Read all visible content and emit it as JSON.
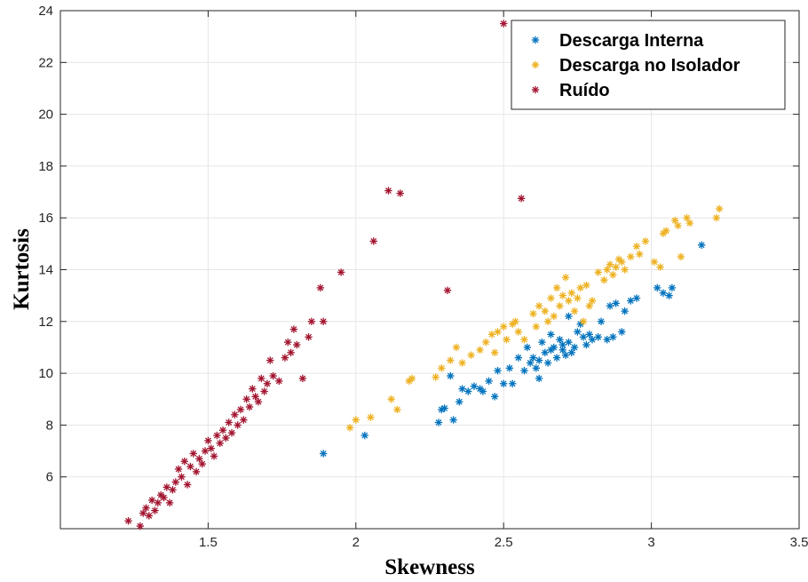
{
  "chart_data": {
    "type": "scatter",
    "title": "",
    "xlabel": "Skewness",
    "ylabel": "Kurtosis",
    "xlim": [
      1.0,
      3.5
    ],
    "ylim": [
      4.0,
      24.0
    ],
    "xticks": [
      1.5,
      2,
      2.5,
      3,
      3.5
    ],
    "xtick_labels": [
      "1.5",
      "2",
      "2.5",
      "3",
      "3.5"
    ],
    "yticks": [
      6,
      8,
      10,
      12,
      14,
      16,
      18,
      20,
      22,
      24
    ],
    "ytick_labels": [
      "6",
      "8",
      "10",
      "12",
      "14",
      "16",
      "18",
      "20",
      "22",
      "24"
    ],
    "grid": true,
    "legend_position": "top-right",
    "marker": "asterisk",
    "series": [
      {
        "name": "Descarga Interna",
        "color": "#0072BD",
        "points": [
          [
            1.89,
            6.9
          ],
          [
            2.03,
            7.6
          ],
          [
            2.28,
            8.1
          ],
          [
            2.3,
            8.65
          ],
          [
            2.29,
            8.6
          ],
          [
            2.33,
            8.2
          ],
          [
            2.35,
            8.9
          ],
          [
            2.32,
            9.9
          ],
          [
            2.36,
            9.4
          ],
          [
            2.38,
            9.3
          ],
          [
            2.4,
            9.5
          ],
          [
            2.42,
            9.4
          ],
          [
            2.43,
            9.3
          ],
          [
            2.45,
            9.7
          ],
          [
            2.47,
            9.1
          ],
          [
            2.48,
            10.1
          ],
          [
            2.5,
            9.6
          ],
          [
            2.52,
            10.2
          ],
          [
            2.53,
            9.6
          ],
          [
            2.55,
            10.6
          ],
          [
            2.57,
            10.1
          ],
          [
            2.58,
            11.0
          ],
          [
            2.59,
            10.4
          ],
          [
            2.6,
            10.6
          ],
          [
            2.61,
            10.2
          ],
          [
            2.62,
            10.5
          ],
          [
            2.62,
            9.8
          ],
          [
            2.63,
            11.2
          ],
          [
            2.64,
            10.8
          ],
          [
            2.65,
            10.4
          ],
          [
            2.66,
            11.5
          ],
          [
            2.66,
            10.9
          ],
          [
            2.67,
            11.0
          ],
          [
            2.68,
            10.6
          ],
          [
            2.69,
            11.3
          ],
          [
            2.7,
            10.9
          ],
          [
            2.7,
            11.1
          ],
          [
            2.71,
            10.7
          ],
          [
            2.72,
            11.2
          ],
          [
            2.72,
            12.2
          ],
          [
            2.73,
            10.8
          ],
          [
            2.74,
            11.0
          ],
          [
            2.75,
            11.6
          ],
          [
            2.76,
            11.9
          ],
          [
            2.77,
            11.4
          ],
          [
            2.78,
            11.1
          ],
          [
            2.79,
            11.5
          ],
          [
            2.8,
            11.3
          ],
          [
            2.82,
            11.4
          ],
          [
            2.83,
            12.0
          ],
          [
            2.85,
            11.3
          ],
          [
            2.86,
            12.6
          ],
          [
            2.87,
            11.4
          ],
          [
            2.88,
            12.7
          ],
          [
            2.9,
            11.6
          ],
          [
            2.91,
            12.4
          ],
          [
            2.93,
            12.8
          ],
          [
            2.95,
            12.9
          ],
          [
            3.02,
            13.3
          ],
          [
            3.04,
            13.1
          ],
          [
            3.06,
            13.0
          ],
          [
            3.07,
            13.3
          ],
          [
            3.17,
            14.95
          ]
        ]
      },
      {
        "name": "Descarga no Isolador",
        "color": "#EDB120",
        "points": [
          [
            1.98,
            7.9
          ],
          [
            2.0,
            8.2
          ],
          [
            2.05,
            8.3
          ],
          [
            2.12,
            9.0
          ],
          [
            2.14,
            8.6
          ],
          [
            2.18,
            9.7
          ],
          [
            2.19,
            9.8
          ],
          [
            2.27,
            9.85
          ],
          [
            2.29,
            10.2
          ],
          [
            2.32,
            10.5
          ],
          [
            2.34,
            11.0
          ],
          [
            2.36,
            10.4
          ],
          [
            2.39,
            10.7
          ],
          [
            2.42,
            10.9
          ],
          [
            2.44,
            11.2
          ],
          [
            2.46,
            11.5
          ],
          [
            2.47,
            10.8
          ],
          [
            2.48,
            11.6
          ],
          [
            2.5,
            11.8
          ],
          [
            2.51,
            11.3
          ],
          [
            2.53,
            11.9
          ],
          [
            2.54,
            12.0
          ],
          [
            2.55,
            11.6
          ],
          [
            2.57,
            11.3
          ],
          [
            2.6,
            12.3
          ],
          [
            2.61,
            11.8
          ],
          [
            2.62,
            12.6
          ],
          [
            2.64,
            12.4
          ],
          [
            2.65,
            12.0
          ],
          [
            2.66,
            12.9
          ],
          [
            2.67,
            12.2
          ],
          [
            2.68,
            13.3
          ],
          [
            2.69,
            12.6
          ],
          [
            2.7,
            13.0
          ],
          [
            2.71,
            13.7
          ],
          [
            2.72,
            12.8
          ],
          [
            2.73,
            13.1
          ],
          [
            2.74,
            12.4
          ],
          [
            2.75,
            12.9
          ],
          [
            2.76,
            13.3
          ],
          [
            2.77,
            12.0
          ],
          [
            2.78,
            13.4
          ],
          [
            2.79,
            12.6
          ],
          [
            2.8,
            12.8
          ],
          [
            2.82,
            13.9
          ],
          [
            2.84,
            13.6
          ],
          [
            2.85,
            14.0
          ],
          [
            2.86,
            14.2
          ],
          [
            2.87,
            13.8
          ],
          [
            2.88,
            14.1
          ],
          [
            2.89,
            14.4
          ],
          [
            2.9,
            14.3
          ],
          [
            2.91,
            14.0
          ],
          [
            2.93,
            14.5
          ],
          [
            2.95,
            14.9
          ],
          [
            2.96,
            14.6
          ],
          [
            2.98,
            15.1
          ],
          [
            3.01,
            14.3
          ],
          [
            3.03,
            14.1
          ],
          [
            3.04,
            15.4
          ],
          [
            3.05,
            15.5
          ],
          [
            3.08,
            15.9
          ],
          [
            3.09,
            15.7
          ],
          [
            3.1,
            14.5
          ],
          [
            3.12,
            16.0
          ],
          [
            3.13,
            15.8
          ],
          [
            3.22,
            16.0
          ],
          [
            3.23,
            16.35
          ]
        ]
      },
      {
        "name": "Ruído",
        "color": "#A2142F",
        "points": [
          [
            1.23,
            4.3
          ],
          [
            1.27,
            4.1
          ],
          [
            1.28,
            4.6
          ],
          [
            1.29,
            4.8
          ],
          [
            1.3,
            4.5
          ],
          [
            1.31,
            5.1
          ],
          [
            1.32,
            4.7
          ],
          [
            1.33,
            5.0
          ],
          [
            1.34,
            5.3
          ],
          [
            1.35,
            5.2
          ],
          [
            1.36,
            5.6
          ],
          [
            1.37,
            5.0
          ],
          [
            1.38,
            5.5
          ],
          [
            1.39,
            5.8
          ],
          [
            1.4,
            6.3
          ],
          [
            1.41,
            6.0
          ],
          [
            1.42,
            6.6
          ],
          [
            1.43,
            5.7
          ],
          [
            1.44,
            6.4
          ],
          [
            1.45,
            6.9
          ],
          [
            1.46,
            6.2
          ],
          [
            1.47,
            6.7
          ],
          [
            1.48,
            6.5
          ],
          [
            1.49,
            7.0
          ],
          [
            1.5,
            7.4
          ],
          [
            1.51,
            7.1
          ],
          [
            1.52,
            6.8
          ],
          [
            1.53,
            7.6
          ],
          [
            1.54,
            7.3
          ],
          [
            1.55,
            7.8
          ],
          [
            1.56,
            7.5
          ],
          [
            1.57,
            8.1
          ],
          [
            1.58,
            7.7
          ],
          [
            1.59,
            8.4
          ],
          [
            1.6,
            8.0
          ],
          [
            1.61,
            8.6
          ],
          [
            1.62,
            8.2
          ],
          [
            1.63,
            9.0
          ],
          [
            1.64,
            8.7
          ],
          [
            1.65,
            9.4
          ],
          [
            1.66,
            9.1
          ],
          [
            1.67,
            8.9
          ],
          [
            1.68,
            9.8
          ],
          [
            1.69,
            9.3
          ],
          [
            1.7,
            9.6
          ],
          [
            1.71,
            10.5
          ],
          [
            1.72,
            9.9
          ],
          [
            1.74,
            9.7
          ],
          [
            1.76,
            10.6
          ],
          [
            1.77,
            11.2
          ],
          [
            1.78,
            10.8
          ],
          [
            1.79,
            11.7
          ],
          [
            1.8,
            11.1
          ],
          [
            1.82,
            9.8
          ],
          [
            1.84,
            11.4
          ],
          [
            1.85,
            12.0
          ],
          [
            1.88,
            13.3
          ],
          [
            1.89,
            12.0
          ],
          [
            1.95,
            13.9
          ],
          [
            2.06,
            15.1
          ],
          [
            2.11,
            17.05
          ],
          [
            2.15,
            16.95
          ],
          [
            2.31,
            13.2
          ],
          [
            2.5,
            23.5
          ],
          [
            2.56,
            16.75
          ]
        ]
      }
    ]
  }
}
